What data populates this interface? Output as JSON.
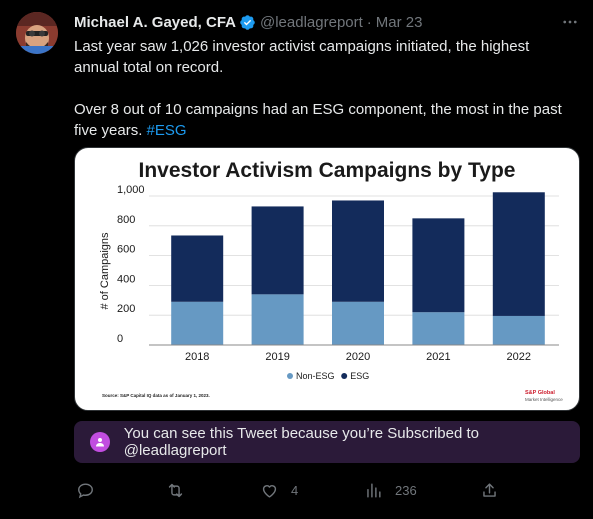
{
  "tweet": {
    "author_name": "Michael A. Gayed, CFA",
    "handle": "@leadlagreport",
    "separator": "·",
    "date": "Mar 23",
    "paragraph_1": "Last year saw 1,026 investor activist campaigns initiated, the highest annual total on record.",
    "paragraph_2_text": "Over 8 out of 10 campaigns had an ESG component, the most in the past five years. ",
    "paragraph_2_hashtag": "#ESG"
  },
  "notice": {
    "text": "You can see this Tweet because you’re Subscribed to @leadlagreport"
  },
  "actions": {
    "reply_icon": "reply-icon",
    "retweet_icon": "retweet-icon",
    "like_icon": "like-icon",
    "like_count": "4",
    "views_icon": "views-icon",
    "views_count": "236",
    "share_icon": "share-icon"
  },
  "colors": {
    "accent": "#1d9bf0",
    "non_esg": "#6699c3",
    "esg": "#132b5b",
    "notice_bg": "#2b1a39"
  },
  "chart_data": {
    "type": "bar",
    "stacked": true,
    "title": "Investor Activism Campaigns by Type",
    "ylabel": "# of Campaigns",
    "xlabel": "",
    "categories": [
      "2018",
      "2019",
      "2020",
      "2021",
      "2022"
    ],
    "ylim": [
      0,
      1000
    ],
    "yticks": [
      0,
      200,
      400,
      600,
      800,
      1000
    ],
    "ytick_labels": [
      "0",
      "200",
      "400",
      "600",
      "800",
      "1,000"
    ],
    "series": [
      {
        "name": "Non-ESG",
        "color": "#6699c3",
        "values": [
          290,
          340,
          290,
          220,
          195
        ]
      },
      {
        "name": "ESG",
        "color": "#132b5b",
        "values": [
          445,
          590,
          680,
          630,
          830
        ]
      }
    ],
    "legend_position": "bottom",
    "source_note": "Source: S&P Capital IQ data as of January 1, 2023.",
    "brand_line_1": "S&P Global",
    "brand_line_2": "Market Intelligence"
  }
}
